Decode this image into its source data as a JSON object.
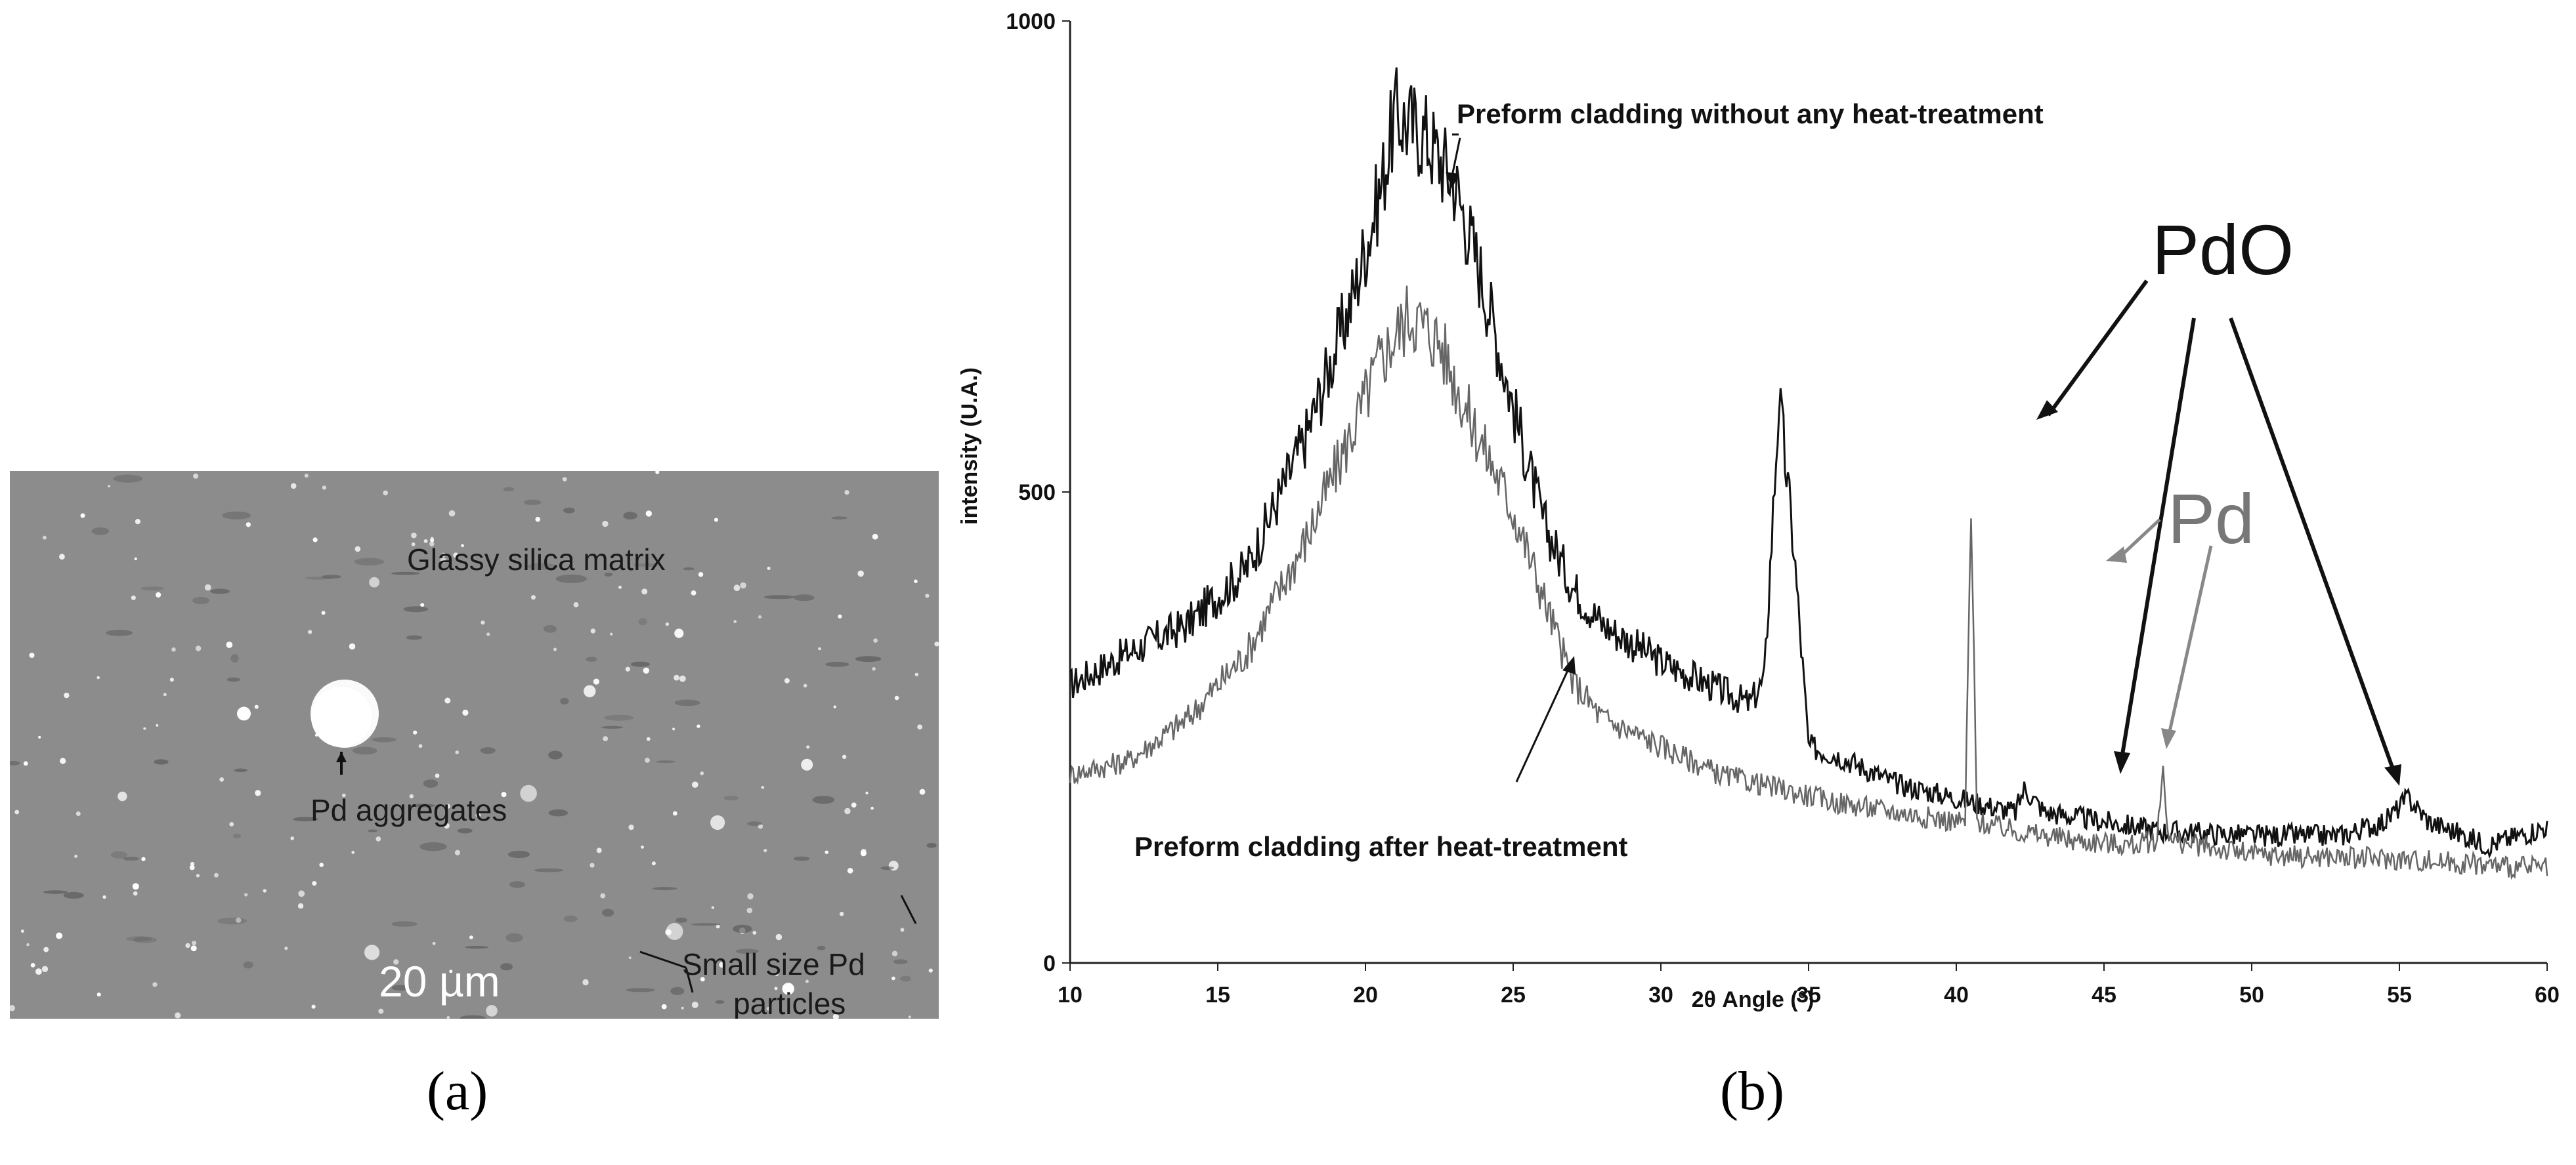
{
  "panel_a": {
    "label": "(a)",
    "matrix_label": "Glassy silica matrix",
    "aggregate_label": "Pd aggregates",
    "particles_label_line1": "Small size Pd",
    "particles_label_line2": "particles",
    "scale_label": "20 µm"
  },
  "panel_b": {
    "label": "(b)"
  },
  "chart_data": {
    "type": "line",
    "xlabel": "2θ Angle (°)",
    "ylabel": "intensity (U.A.)",
    "xlim": [
      10,
      60
    ],
    "ylim": [
      0,
      1000
    ],
    "xticks": [
      "10",
      "15",
      "20",
      "25",
      "30",
      "35",
      "40",
      "45",
      "50",
      "55",
      "60"
    ],
    "yticks": [
      "0",
      "500",
      "1000"
    ],
    "series": [
      {
        "name": "Preform cladding without any heat-treatment",
        "color": "#111111",
        "points": [
          [
            10,
            295
          ],
          [
            12,
            330
          ],
          [
            14,
            360
          ],
          [
            16,
            420
          ],
          [
            18,
            560
          ],
          [
            19.5,
            700
          ],
          [
            20.5,
            820
          ],
          [
            21,
            900
          ],
          [
            22,
            880
          ],
          [
            23,
            830
          ],
          [
            24,
            720
          ],
          [
            25,
            590
          ],
          [
            26,
            470
          ],
          [
            27,
            400
          ],
          [
            28,
            360
          ],
          [
            30,
            320
          ],
          [
            32,
            290
          ],
          [
            33,
            275
          ],
          [
            33.5,
            300
          ],
          [
            34,
            600
          ],
          [
            34.5,
            440
          ],
          [
            35,
            230
          ],
          [
            36,
            220
          ],
          [
            38,
            190
          ],
          [
            40,
            175
          ],
          [
            42,
            160
          ],
          [
            42.3,
            185
          ],
          [
            43,
            160
          ],
          [
            45,
            150
          ],
          [
            47,
            140
          ],
          [
            50,
            135
          ],
          [
            53,
            135
          ],
          [
            54.5,
            150
          ],
          [
            55.3,
            175
          ],
          [
            56,
            150
          ],
          [
            58,
            125
          ],
          [
            60,
            145
          ]
        ]
      },
      {
        "name": "Preform cladding after heat-treatment",
        "color": "#666666",
        "points": [
          [
            10,
            200
          ],
          [
            12,
            215
          ],
          [
            14,
            260
          ],
          [
            16,
            330
          ],
          [
            18,
            450
          ],
          [
            19.5,
            560
          ],
          [
            20.5,
            640
          ],
          [
            21.5,
            690
          ],
          [
            22.5,
            660
          ],
          [
            23.5,
            580
          ],
          [
            25,
            480
          ],
          [
            26,
            390
          ],
          [
            27,
            300
          ],
          [
            28,
            260
          ],
          [
            30,
            230
          ],
          [
            32,
            200
          ],
          [
            34,
            185
          ],
          [
            36,
            170
          ],
          [
            38,
            160
          ],
          [
            40,
            150
          ],
          [
            40.3,
            150
          ],
          [
            40.5,
            480
          ],
          [
            40.7,
            150
          ],
          [
            42,
            140
          ],
          [
            44,
            130
          ],
          [
            46,
            125
          ],
          [
            46.8,
            130
          ],
          [
            47,
            210
          ],
          [
            47.2,
            130
          ],
          [
            50,
            115
          ],
          [
            55,
            110
          ],
          [
            60,
            100
          ]
        ]
      }
    ],
    "annotations": [
      {
        "text": "Preform cladding without any heat-treatment"
      },
      {
        "text": "Preform cladding after heat-treatment"
      },
      {
        "text": "PdO"
      },
      {
        "text": "Pd"
      }
    ]
  }
}
